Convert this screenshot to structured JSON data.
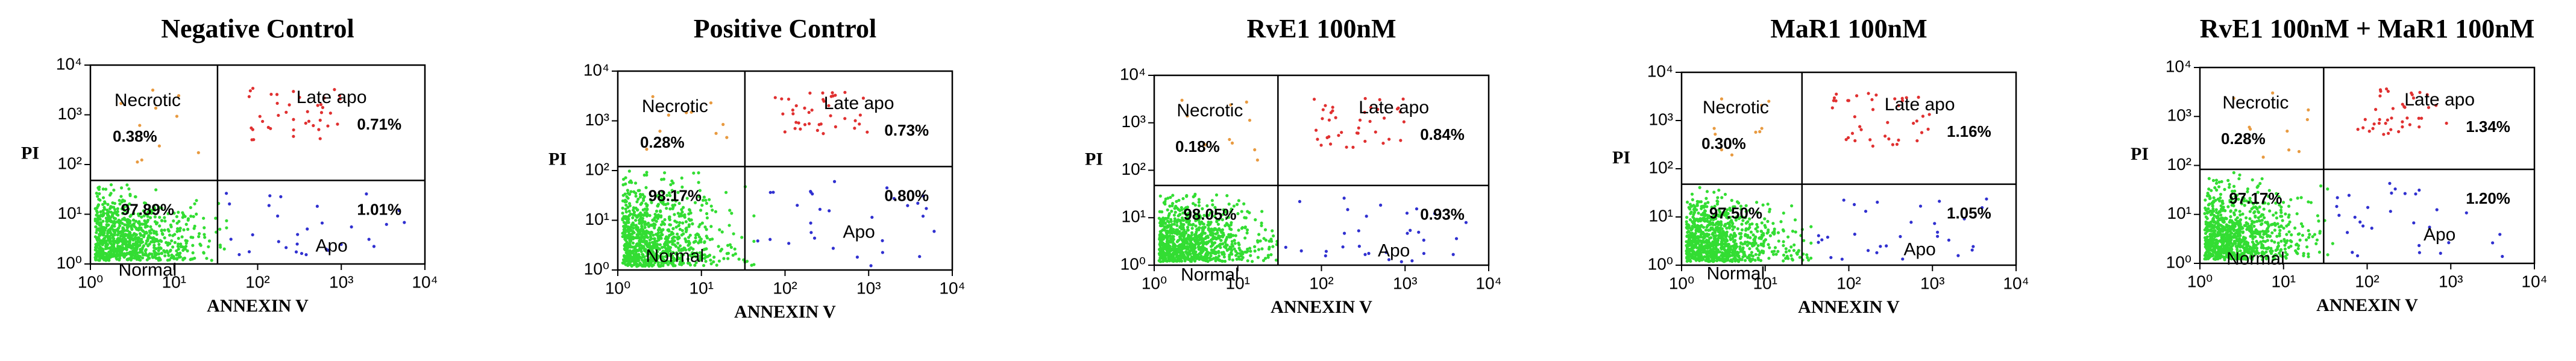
{
  "chart_data": [
    {
      "type": "scatter",
      "title": "Negative  Control",
      "x_label": "ANNEXIN V",
      "y_label": "PI",
      "quadrants": [
        "Necrotic",
        "Late apo",
        "Normal",
        "Apo"
      ],
      "values": [
        0.38,
        0.71,
        97.89,
        1.01
      ],
      "value_labels": [
        "0.38%",
        "0.71%",
        "97.89%",
        "1.01%"
      ],
      "xlim": [
        1,
        10000
      ],
      "ylim": [
        1,
        10000
      ],
      "log_scale": true,
      "xticks": [
        {
          "value": 1,
          "label": "10⁰"
        },
        {
          "value": 10,
          "label": "10¹"
        },
        {
          "value": 100,
          "label": "10²"
        },
        {
          "value": 1000,
          "label": "10³"
        },
        {
          "value": 10000,
          "label": "10⁴"
        }
      ],
      "yticks": [
        {
          "value": 1,
          "label": "10⁰"
        },
        {
          "value": 10,
          "label": "10¹"
        },
        {
          "value": 100,
          "label": "10²"
        },
        {
          "value": 1000,
          "label": "10³"
        },
        {
          "value": 10000,
          "label": "10⁴"
        }
      ]
    },
    {
      "type": "scatter",
      "title": "Positive  Control",
      "x_label": "ANNEXIN V",
      "y_label": "PI",
      "quadrants": [
        "Necrotic",
        "Late apo",
        "Normal",
        "Apo"
      ],
      "values": [
        0.28,
        0.73,
        98.17,
        0.8
      ],
      "value_labels": [
        "0.28%",
        "0.73%",
        "98.17%",
        "0.80%"
      ],
      "xlim": [
        1,
        10000
      ],
      "ylim": [
        1,
        10000
      ],
      "log_scale": true,
      "xticks": [
        {
          "value": 1,
          "label": "10⁰"
        },
        {
          "value": 10,
          "label": "10¹"
        },
        {
          "value": 100,
          "label": "10²"
        },
        {
          "value": 1000,
          "label": "10³"
        },
        {
          "value": 10000,
          "label": "10⁴"
        }
      ],
      "yticks": [
        {
          "value": 1,
          "label": "10⁰"
        },
        {
          "value": 10,
          "label": "10¹"
        },
        {
          "value": 100,
          "label": "10²"
        },
        {
          "value": 1000,
          "label": "10³"
        },
        {
          "value": 10000,
          "label": "10⁴"
        }
      ]
    },
    {
      "type": "scatter",
      "title": "RvE1 100nM",
      "x_label": "ANNEXIN V",
      "y_label": "PI",
      "quadrants": [
        "Necrotic",
        "Late apo",
        "Normal",
        "Apo"
      ],
      "values": [
        0.18,
        0.84,
        98.05,
        0.93
      ],
      "value_labels": [
        "0.18%",
        "0.84%",
        "98.05%",
        "0.93%"
      ],
      "xlim": [
        1,
        10000
      ],
      "ylim": [
        1,
        10000
      ],
      "log_scale": true,
      "xticks": [
        {
          "value": 1,
          "label": "10⁰"
        },
        {
          "value": 10,
          "label": "10¹"
        },
        {
          "value": 100,
          "label": "10²"
        },
        {
          "value": 1000,
          "label": "10³"
        },
        {
          "value": 10000,
          "label": "10⁴"
        }
      ],
      "yticks": [
        {
          "value": 1,
          "label": "10⁰"
        },
        {
          "value": 10,
          "label": "10¹"
        },
        {
          "value": 100,
          "label": "10²"
        },
        {
          "value": 1000,
          "label": "10³"
        },
        {
          "value": 10000,
          "label": "10⁴"
        }
      ]
    },
    {
      "type": "scatter",
      "title": "MaR1 100nM",
      "x_label": "ANNEXIN V",
      "y_label": "PI",
      "quadrants": [
        "Necrotic",
        "Late apo",
        "Normal",
        "Apo"
      ],
      "values": [
        0.3,
        1.16,
        97.5,
        1.05
      ],
      "value_labels": [
        "0.30%",
        "1.16%",
        "97.50%",
        "1.05%"
      ],
      "xlim": [
        1,
        10000
      ],
      "ylim": [
        1,
        10000
      ],
      "log_scale": true,
      "xticks": [
        {
          "value": 1,
          "label": "10⁰"
        },
        {
          "value": 10,
          "label": "10¹"
        },
        {
          "value": 100,
          "label": "10²"
        },
        {
          "value": 1000,
          "label": "10³"
        },
        {
          "value": 10000,
          "label": "10⁴"
        }
      ],
      "yticks": [
        {
          "value": 1,
          "label": "10⁰"
        },
        {
          "value": 10,
          "label": "10¹"
        },
        {
          "value": 100,
          "label": "10²"
        },
        {
          "value": 1000,
          "label": "10³"
        },
        {
          "value": 10000,
          "label": "10⁴"
        }
      ]
    },
    {
      "type": "scatter",
      "title": "RvE1 100nM + MaR1 100nM",
      "x_label": "ANNEXIN V",
      "y_label": "PI",
      "quadrants": [
        "Necrotic",
        "Late apo",
        "Normal",
        "Apo"
      ],
      "values": [
        0.28,
        1.34,
        97.17,
        1.2
      ],
      "value_labels": [
        "0.28%",
        "1.34%",
        "97.17%",
        "1.20%"
      ],
      "xlim": [
        1,
        10000
      ],
      "ylim": [
        1,
        10000
      ],
      "log_scale": true,
      "xticks": [
        {
          "value": 1,
          "label": "10⁰"
        },
        {
          "value": 10,
          "label": "10¹"
        },
        {
          "value": 100,
          "label": "10²"
        },
        {
          "value": 1000,
          "label": "10³"
        },
        {
          "value": 10000,
          "label": "10⁴"
        }
      ],
      "yticks": [
        {
          "value": 1,
          "label": "10⁰"
        },
        {
          "value": 10,
          "label": "10¹"
        },
        {
          "value": 100,
          "label": "10²"
        },
        {
          "value": 1000,
          "label": "10³"
        },
        {
          "value": 10000,
          "label": "10⁴"
        }
      ]
    }
  ]
}
